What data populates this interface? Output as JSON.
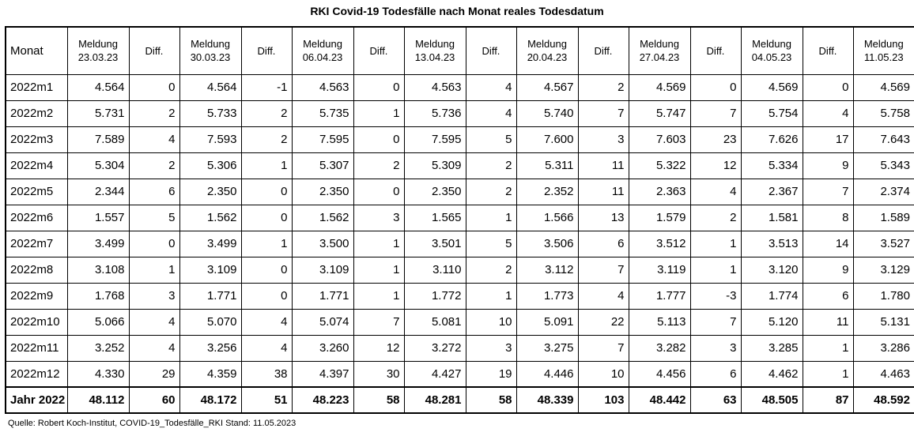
{
  "title": "RKI Covid-19 Todesfälle nach Monat reales Todesdatum",
  "source": "Quelle: Robert Koch-Institut, COVID-19_Todesfälle_RKI Stand: 11.05.2023",
  "table": {
    "month_header": "Monat",
    "headers": [
      {
        "line1": "Meldung",
        "line2": "23.03.23"
      },
      {
        "line1": "Diff.",
        "line2": ""
      },
      {
        "line1": "Meldung",
        "line2": "30.03.23"
      },
      {
        "line1": "Diff.",
        "line2": ""
      },
      {
        "line1": "Meldung",
        "line2": "06.04.23"
      },
      {
        "line1": "Diff.",
        "line2": ""
      },
      {
        "line1": "Meldung",
        "line2": "13.04.23"
      },
      {
        "line1": "Diff.",
        "line2": ""
      },
      {
        "line1": "Meldung",
        "line2": "20.04.23"
      },
      {
        "line1": "Diff.",
        "line2": ""
      },
      {
        "line1": "Meldung",
        "line2": "27.04.23"
      },
      {
        "line1": "Diff.",
        "line2": ""
      },
      {
        "line1": "Meldung",
        "line2": "04.05.23"
      },
      {
        "line1": "Diff.",
        "line2": ""
      },
      {
        "line1": "Meldung",
        "line2": "11.05.23"
      }
    ],
    "rows": [
      {
        "month": "2022m1",
        "cells": [
          "4.564",
          "0",
          "4.564",
          "-1",
          "4.563",
          "0",
          "4.563",
          "4",
          "4.567",
          "2",
          "4.569",
          "0",
          "4.569",
          "0",
          "4.569"
        ]
      },
      {
        "month": "2022m2",
        "cells": [
          "5.731",
          "2",
          "5.733",
          "2",
          "5.735",
          "1",
          "5.736",
          "4",
          "5.740",
          "7",
          "5.747",
          "7",
          "5.754",
          "4",
          "5.758"
        ]
      },
      {
        "month": "2022m3",
        "cells": [
          "7.589",
          "4",
          "7.593",
          "2",
          "7.595",
          "0",
          "7.595",
          "5",
          "7.600",
          "3",
          "7.603",
          "23",
          "7.626",
          "17",
          "7.643"
        ]
      },
      {
        "month": "2022m4",
        "cells": [
          "5.304",
          "2",
          "5.306",
          "1",
          "5.307",
          "2",
          "5.309",
          "2",
          "5.311",
          "11",
          "5.322",
          "12",
          "5.334",
          "9",
          "5.343"
        ]
      },
      {
        "month": "2022m5",
        "cells": [
          "2.344",
          "6",
          "2.350",
          "0",
          "2.350",
          "0",
          "2.350",
          "2",
          "2.352",
          "11",
          "2.363",
          "4",
          "2.367",
          "7",
          "2.374"
        ]
      },
      {
        "month": "2022m6",
        "cells": [
          "1.557",
          "5",
          "1.562",
          "0",
          "1.562",
          "3",
          "1.565",
          "1",
          "1.566",
          "13",
          "1.579",
          "2",
          "1.581",
          "8",
          "1.589"
        ]
      },
      {
        "month": "2022m7",
        "cells": [
          "3.499",
          "0",
          "3.499",
          "1",
          "3.500",
          "1",
          "3.501",
          "5",
          "3.506",
          "6",
          "3.512",
          "1",
          "3.513",
          "14",
          "3.527"
        ]
      },
      {
        "month": "2022m8",
        "cells": [
          "3.108",
          "1",
          "3.109",
          "0",
          "3.109",
          "1",
          "3.110",
          "2",
          "3.112",
          "7",
          "3.119",
          "1",
          "3.120",
          "9",
          "3.129"
        ]
      },
      {
        "month": "2022m9",
        "cells": [
          "1.768",
          "3",
          "1.771",
          "0",
          "1.771",
          "1",
          "1.772",
          "1",
          "1.773",
          "4",
          "1.777",
          "-3",
          "1.774",
          "6",
          "1.780"
        ]
      },
      {
        "month": "2022m10",
        "cells": [
          "5.066",
          "4",
          "5.070",
          "4",
          "5.074",
          "7",
          "5.081",
          "10",
          "5.091",
          "22",
          "5.113",
          "7",
          "5.120",
          "11",
          "5.131"
        ]
      },
      {
        "month": "2022m11",
        "cells": [
          "3.252",
          "4",
          "3.256",
          "4",
          "3.260",
          "12",
          "3.272",
          "3",
          "3.275",
          "7",
          "3.282",
          "3",
          "3.285",
          "1",
          "3.286"
        ]
      },
      {
        "month": "2022m12",
        "cells": [
          "4.330",
          "29",
          "4.359",
          "38",
          "4.397",
          "30",
          "4.427",
          "19",
          "4.446",
          "10",
          "4.456",
          "6",
          "4.462",
          "1",
          "4.463"
        ]
      }
    ],
    "total": {
      "month": "Jahr 2022",
      "cells": [
        "48.112",
        "60",
        "48.172",
        "51",
        "48.223",
        "58",
        "48.281",
        "58",
        "48.339",
        "103",
        "48.442",
        "63",
        "48.505",
        "87",
        "48.592"
      ]
    }
  }
}
